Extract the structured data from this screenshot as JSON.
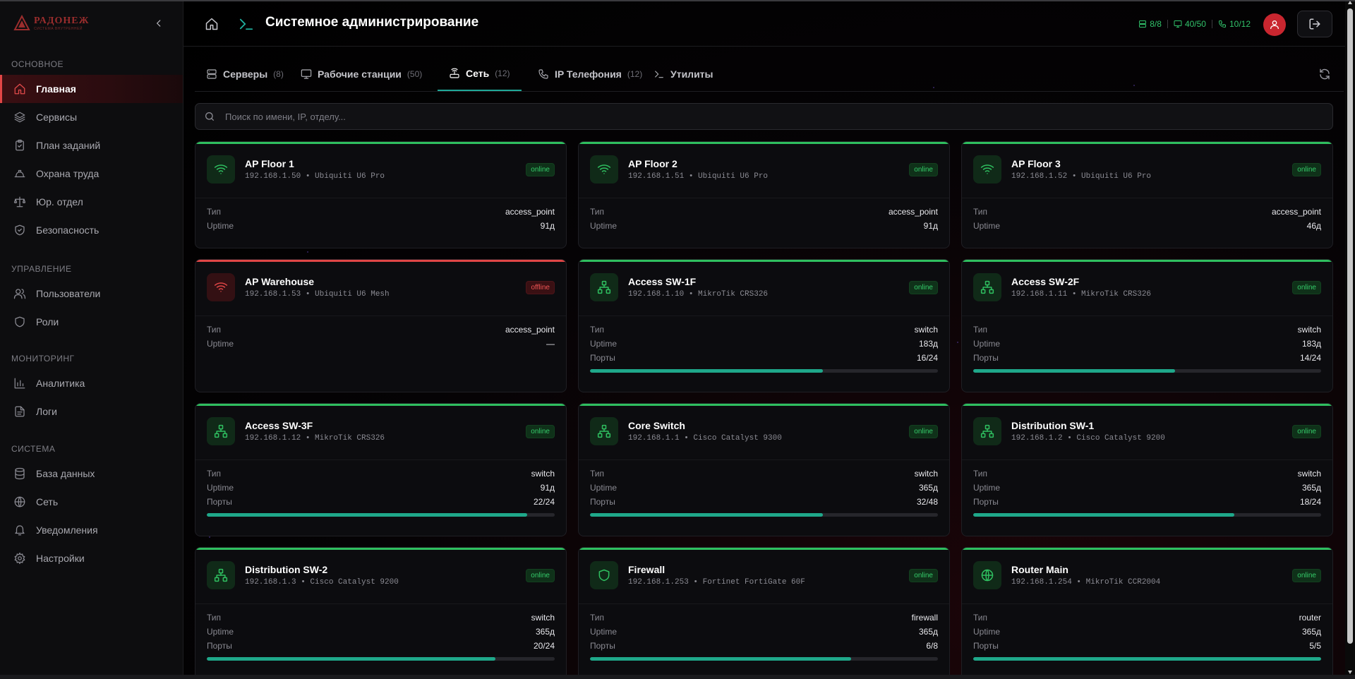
{
  "brand": {
    "name": "РАДОНЕЖ",
    "sub": "СИСТЕМА ВНУТРЕННЕЙ"
  },
  "sidebar": {
    "sections": [
      {
        "title": "ОСНОВНОЕ",
        "items": [
          {
            "label": "Главная",
            "icon": "home-icon",
            "active": true
          },
          {
            "label": "Сервисы",
            "icon": "layers-icon"
          },
          {
            "label": "План заданий",
            "icon": "clipboard-icon"
          },
          {
            "label": "Охрана труда",
            "icon": "hardhat-icon"
          },
          {
            "label": "Юр. отдел",
            "icon": "scales-icon"
          },
          {
            "label": "Безопасность",
            "icon": "shield-check-icon"
          }
        ]
      },
      {
        "title": "УПРАВЛЕНИЕ",
        "items": [
          {
            "label": "Пользователи",
            "icon": "users-icon"
          },
          {
            "label": "Роли",
            "icon": "shield-icon"
          }
        ]
      },
      {
        "title": "МОНИТОРИНГ",
        "items": [
          {
            "label": "Аналитика",
            "icon": "bar-chart-icon"
          },
          {
            "label": "Логи",
            "icon": "file-text-icon"
          }
        ]
      },
      {
        "title": "СИСТЕМА",
        "items": [
          {
            "label": "База данных",
            "icon": "database-icon"
          },
          {
            "label": "Сеть",
            "icon": "globe-icon"
          },
          {
            "label": "Уведомления",
            "icon": "bell-icon"
          },
          {
            "label": "Настройки",
            "icon": "gear-icon"
          }
        ]
      }
    ]
  },
  "header": {
    "title": "Системное администрирование",
    "stats": [
      {
        "icon": "server-icon",
        "value": "8/8"
      },
      {
        "icon": "monitor-icon",
        "value": "40/50"
      },
      {
        "icon": "phone-icon",
        "value": "10/12"
      }
    ]
  },
  "tabs": [
    {
      "label": "Серверы",
      "count": "(8)",
      "icon": "server-icon"
    },
    {
      "label": "Рабочие станции",
      "count": "(50)",
      "icon": "monitor-icon"
    },
    {
      "label": "Сеть",
      "count": "(12)",
      "icon": "router-icon",
      "active": true
    },
    {
      "label": "IP Телефония",
      "count": "(12)",
      "icon": "phone-icon"
    },
    {
      "label": "Утилиты",
      "count": "",
      "icon": "terminal-icon"
    }
  ],
  "search": {
    "placeholder": "Поиск по имени, IP, отделу..."
  },
  "labels": {
    "type": "Тип",
    "uptime": "Uptime",
    "ports": "Порты"
  },
  "colors": {
    "online": "#2fbf5f",
    "offline": "#e04646",
    "accent": "#1fa88a",
    "brand": "#9b2d2d"
  },
  "devices": [
    {
      "name": "AP Floor 1",
      "sub": "192.168.1.50 • Ubiquiti U6 Pro",
      "status": "online",
      "icon": "wifi-icon",
      "type": "access_point",
      "uptime": "91д"
    },
    {
      "name": "AP Floor 2",
      "sub": "192.168.1.51 • Ubiquiti U6 Pro",
      "status": "online",
      "icon": "wifi-icon",
      "type": "access_point",
      "uptime": "91д"
    },
    {
      "name": "AP Floor 3",
      "sub": "192.168.1.52 • Ubiquiti U6 Pro",
      "status": "online",
      "icon": "wifi-icon",
      "type": "access_point",
      "uptime": "46д"
    },
    {
      "name": "AP Warehouse",
      "sub": "192.168.1.53 • Ubiquiti U6 Mesh",
      "status": "offline",
      "icon": "wifi-icon",
      "type": "access_point",
      "uptime": "—"
    },
    {
      "name": "Access SW-1F",
      "sub": "192.168.1.10 • MikroTik CRS326",
      "status": "online",
      "icon": "network-icon",
      "type": "switch",
      "uptime": "183д",
      "ports": "16/24",
      "ports_fraction": 0.667
    },
    {
      "name": "Access SW-2F",
      "sub": "192.168.1.11 • MikroTik CRS326",
      "status": "online",
      "icon": "network-icon",
      "type": "switch",
      "uptime": "183д",
      "ports": "14/24",
      "ports_fraction": 0.583
    },
    {
      "name": "Access SW-3F",
      "sub": "192.168.1.12 • MikroTik CRS326",
      "status": "online",
      "icon": "network-icon",
      "type": "switch",
      "uptime": "91д",
      "ports": "22/24",
      "ports_fraction": 0.917
    },
    {
      "name": "Core Switch",
      "sub": "192.168.1.1 • Cisco Catalyst 9300",
      "status": "online",
      "icon": "network-icon",
      "type": "switch",
      "uptime": "365д",
      "ports": "32/48",
      "ports_fraction": 0.667
    },
    {
      "name": "Distribution SW-1",
      "sub": "192.168.1.2 • Cisco Catalyst 9200",
      "status": "online",
      "icon": "network-icon",
      "type": "switch",
      "uptime": "365д",
      "ports": "18/24",
      "ports_fraction": 0.75
    },
    {
      "name": "Distribution SW-2",
      "sub": "192.168.1.3 • Cisco Catalyst 9200",
      "status": "online",
      "icon": "network-icon",
      "type": "switch",
      "uptime": "365д",
      "ports": "20/24",
      "ports_fraction": 0.833
    },
    {
      "name": "Firewall",
      "sub": "192.168.1.253 • Fortinet FortiGate 60F",
      "status": "online",
      "icon": "shield-icon",
      "type": "firewall",
      "uptime": "365д",
      "ports": "6/8",
      "ports_fraction": 0.75
    },
    {
      "name": "Router Main",
      "sub": "192.168.1.254 • MikroTik CCR2004",
      "status": "online",
      "icon": "globe-icon",
      "type": "router",
      "uptime": "365д",
      "ports": "5/5",
      "ports_fraction": 1.0
    }
  ]
}
